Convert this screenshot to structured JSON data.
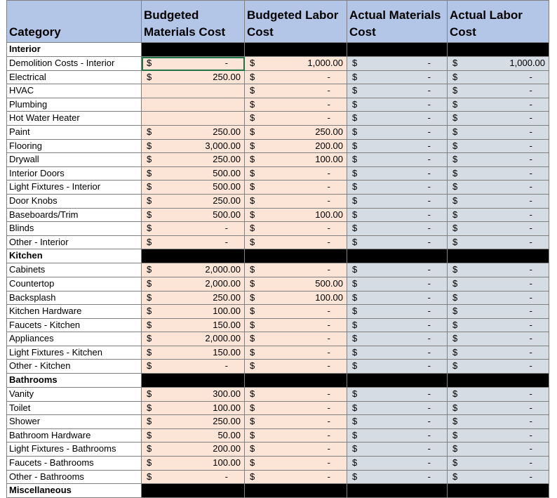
{
  "currency_symbol": "$",
  "columns": [
    "Category",
    "Budgeted Materials Cost",
    "Budgeted Labor Cost",
    "Actual Materials Cost",
    "Actual Labor Cost"
  ],
  "sections": [
    {
      "name": "Interior",
      "rows": [
        {
          "category": "Demolition Costs - Interior",
          "cells": [
            "-",
            "1,000.00",
            "-",
            "1,000.00"
          ]
        },
        {
          "category": "Electrical",
          "cells": [
            "250.00",
            "-",
            "-",
            "-"
          ]
        },
        {
          "category": "HVAC",
          "cells": [
            null,
            "-",
            "-",
            "-"
          ]
        },
        {
          "category": "Plumbing",
          "cells": [
            null,
            "-",
            "-",
            "-"
          ]
        },
        {
          "category": "Hot Water Heater",
          "cells": [
            null,
            "-",
            "-",
            "-"
          ]
        },
        {
          "category": "Paint",
          "cells": [
            "250.00",
            "250.00",
            "-",
            "-"
          ]
        },
        {
          "category": "Flooring",
          "cells": [
            "3,000.00",
            "200.00",
            "-",
            "-"
          ]
        },
        {
          "category": "Drywall",
          "cells": [
            "250.00",
            "100.00",
            "-",
            "-"
          ]
        },
        {
          "category": "Interior Doors",
          "cells": [
            "500.00",
            "-",
            "-",
            "-"
          ]
        },
        {
          "category": "Light Fixtures - Interior",
          "cells": [
            "500.00",
            "-",
            "-",
            "-"
          ]
        },
        {
          "category": "Door Knobs",
          "cells": [
            "250.00",
            "-",
            "-",
            "-"
          ]
        },
        {
          "category": "Baseboards/Trim",
          "cells": [
            "500.00",
            "100.00",
            "-",
            "-"
          ]
        },
        {
          "category": "Blinds",
          "cells": [
            "-",
            "-",
            "-",
            "-"
          ]
        },
        {
          "category": "Other - Interior",
          "cells": [
            "-",
            "-",
            "-",
            "-"
          ]
        }
      ]
    },
    {
      "name": "Kitchen",
      "rows": [
        {
          "category": "Cabinets",
          "cells": [
            "2,000.00",
            "-",
            "-",
            "-"
          ]
        },
        {
          "category": "Countertop",
          "cells": [
            "2,000.00",
            "500.00",
            "-",
            "-"
          ]
        },
        {
          "category": "Backsplash",
          "cells": [
            "250.00",
            "100.00",
            "-",
            "-"
          ]
        },
        {
          "category": "Kitchen Hardware",
          "cells": [
            "100.00",
            "-",
            "-",
            "-"
          ]
        },
        {
          "category": "Faucets - Kitchen",
          "cells": [
            "150.00",
            "-",
            "-",
            "-"
          ]
        },
        {
          "category": "Appliances",
          "cells": [
            "2,000.00",
            "-",
            "-",
            "-"
          ]
        },
        {
          "category": "Light Fixtures - Kitchen",
          "cells": [
            "150.00",
            "-",
            "-",
            "-"
          ]
        },
        {
          "category": "Other - Kitchen",
          "cells": [
            "-",
            "-",
            "-",
            "-"
          ]
        }
      ]
    },
    {
      "name": "Bathrooms",
      "rows": [
        {
          "category": "Vanity",
          "cells": [
            "300.00",
            "-",
            "-",
            "-"
          ]
        },
        {
          "category": "Toilet",
          "cells": [
            "100.00",
            "-",
            "-",
            "-"
          ]
        },
        {
          "category": "Shower",
          "cells": [
            "250.00",
            "-",
            "-",
            "-"
          ]
        },
        {
          "category": "Bathroom Hardware",
          "cells": [
            "50.00",
            "-",
            "-",
            "-"
          ]
        },
        {
          "category": "Light Fixtures - Bathrooms",
          "cells": [
            "200.00",
            "-",
            "-",
            "-"
          ]
        },
        {
          "category": "Faucets - Bathrooms",
          "cells": [
            "100.00",
            "-",
            "-",
            "-"
          ]
        },
        {
          "category": "Other - Bathrooms",
          "cells": [
            "-",
            "-",
            "-",
            "-"
          ]
        }
      ]
    },
    {
      "name": "Miscellaneous",
      "rows": []
    }
  ]
}
